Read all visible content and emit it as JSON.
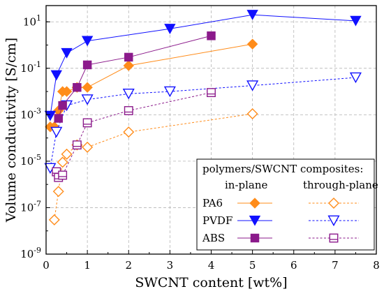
{
  "chart_data": {
    "type": "scatter",
    "xlabel": "SWCNT content [wt%]",
    "ylabel": "Volume conductivity [S/cm]",
    "xlim": [
      0,
      8
    ],
    "ylim": [
      1e-09,
      50
    ],
    "yscale": "log",
    "grid": true,
    "x_ticks": [
      0,
      1,
      2,
      3,
      4,
      5,
      6,
      7,
      8
    ],
    "y_ticks": [
      {
        "value": 1e-09,
        "base": "10",
        "exp": "-9"
      },
      {
        "value": 1e-07,
        "base": "10",
        "exp": "-7"
      },
      {
        "value": 1e-05,
        "base": "10",
        "exp": "-5"
      },
      {
        "value": 0.001,
        "base": "10",
        "exp": "-3"
      },
      {
        "value": 0.1,
        "base": "10",
        "exp": "-1"
      },
      {
        "value": 10,
        "base": "10",
        "exp": "1"
      }
    ],
    "legend": {
      "title": "polymers/SWCNT composites:",
      "col_in": "in-plane",
      "col_through": "through-plane",
      "placement": "bottom-right"
    },
    "series": [
      {
        "name": "PA6",
        "orientation": "in-plane",
        "color": "#FF8C1A",
        "marker": "diamond",
        "filled": true,
        "dashed": false,
        "x": [
          0.1,
          0.2,
          0.3,
          0.4,
          0.5,
          0.75,
          1,
          2,
          5
        ],
        "y": [
          0.0003,
          0.0003,
          0.0015,
          0.01,
          0.01,
          0.015,
          0.015,
          0.13,
          1.1
        ]
      },
      {
        "name": "PA6",
        "orientation": "through-plane",
        "color": "#FF8C1A",
        "marker": "diamond",
        "filled": false,
        "dashed": true,
        "x": [
          0.2,
          0.3,
          0.4,
          0.5,
          0.75,
          1,
          2,
          5
        ],
        "y": [
          3e-08,
          5e-07,
          9e-06,
          2e-05,
          5e-05,
          4e-05,
          0.00018,
          0.0011
        ]
      },
      {
        "name": "PVDF",
        "orientation": "in-plane",
        "color": "#1010FF",
        "marker": "triangle-down",
        "filled": true,
        "dashed": false,
        "x": [
          0.1,
          0.25,
          0.5,
          1,
          3,
          5,
          7.5
        ],
        "y": [
          0.0009,
          0.05,
          0.45,
          1.5,
          5,
          20,
          11
        ]
      },
      {
        "name": "PVDF",
        "orientation": "through-plane",
        "color": "#1010FF",
        "marker": "triangle-down",
        "filled": false,
        "dashed": true,
        "x": [
          0.1,
          0.25,
          0.5,
          1,
          2,
          3,
          5,
          7.5
        ],
        "y": [
          5e-06,
          0.00018,
          0.0025,
          0.0045,
          0.008,
          0.01,
          0.018,
          0.04
        ]
      },
      {
        "name": "ABS",
        "orientation": "in-plane",
        "color": "#8B1A8B",
        "marker": "square",
        "filled": true,
        "dashed": false,
        "x": [
          0.3,
          0.4,
          0.75,
          1,
          2,
          4
        ],
        "y": [
          0.0007,
          0.0025,
          0.015,
          0.14,
          0.3,
          2.5
        ]
      },
      {
        "name": "ABS",
        "orientation": "through-plane",
        "color": "#8B1A8B",
        "marker": "square",
        "filled": false,
        "dashed": true,
        "x": [
          0.25,
          0.3,
          0.4,
          0.75,
          1,
          2,
          4
        ],
        "y": [
          3.5e-06,
          2e-06,
          2.5e-06,
          5e-05,
          0.00045,
          0.0015,
          0.009
        ]
      }
    ]
  }
}
